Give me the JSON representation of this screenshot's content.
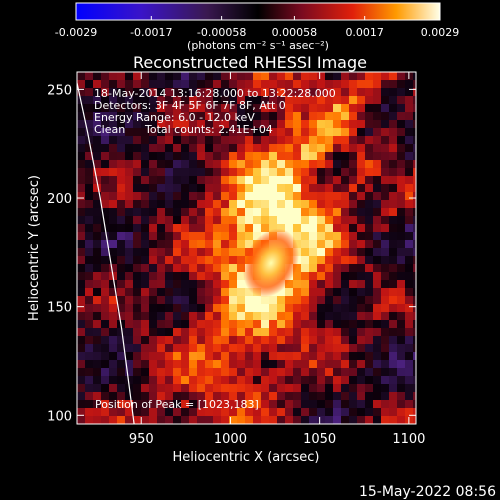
{
  "colorbar": {
    "ticks": [
      "-0.0029",
      "-0.0017",
      "-0.00058",
      "0.00058",
      "0.0017",
      "0.0029"
    ],
    "units": "(photons cm⁻² s⁻¹ asec⁻²)",
    "range": [
      -0.0029,
      0.0029
    ]
  },
  "image": {
    "title": "Reconstructed RHESSI Image",
    "time_range": "18-May-2014 13:16:28.000 to 13:22:28.000",
    "detectors": "Detectors: 3F 4F 5F 6F 7F 8F, Att 0",
    "energy": "Energy Range: 6.0 - 12.0 keV",
    "clean_label": "Clean",
    "counts": "Total counts: 2.41E+04",
    "peak": "Position of Peak = [1023,183]"
  },
  "footer": {
    "date": "15-May-2022 08:56"
  },
  "chart_data": {
    "type": "heatmap",
    "title": "Reconstructed RHESSI Image",
    "xlabel": "Heliocentric X (arcsec)",
    "ylabel": "Heliocentric Y (arcsec)",
    "xlim": [
      914,
      1104
    ],
    "ylim": [
      96,
      258
    ],
    "x_ticks": [
      950,
      1000,
      1050,
      1100
    ],
    "y_ticks": [
      100,
      150,
      200,
      250
    ],
    "x_tick_labels": [
      "950",
      "1000",
      "1050",
      "1100"
    ],
    "y_tick_labels": [
      "100",
      "150",
      "200",
      "250"
    ],
    "peak_position": [
      1023,
      183
    ],
    "value_range": [
      -0.0029,
      0.0029
    ],
    "colormap": "purple-black-red-yellow-white",
    "limb_curve": [
      [
        914,
        253
      ],
      [
        920,
        230
      ],
      [
        927,
        200
      ],
      [
        933,
        170
      ],
      [
        939,
        140
      ],
      [
        943,
        115
      ],
      [
        946,
        96
      ]
    ]
  }
}
